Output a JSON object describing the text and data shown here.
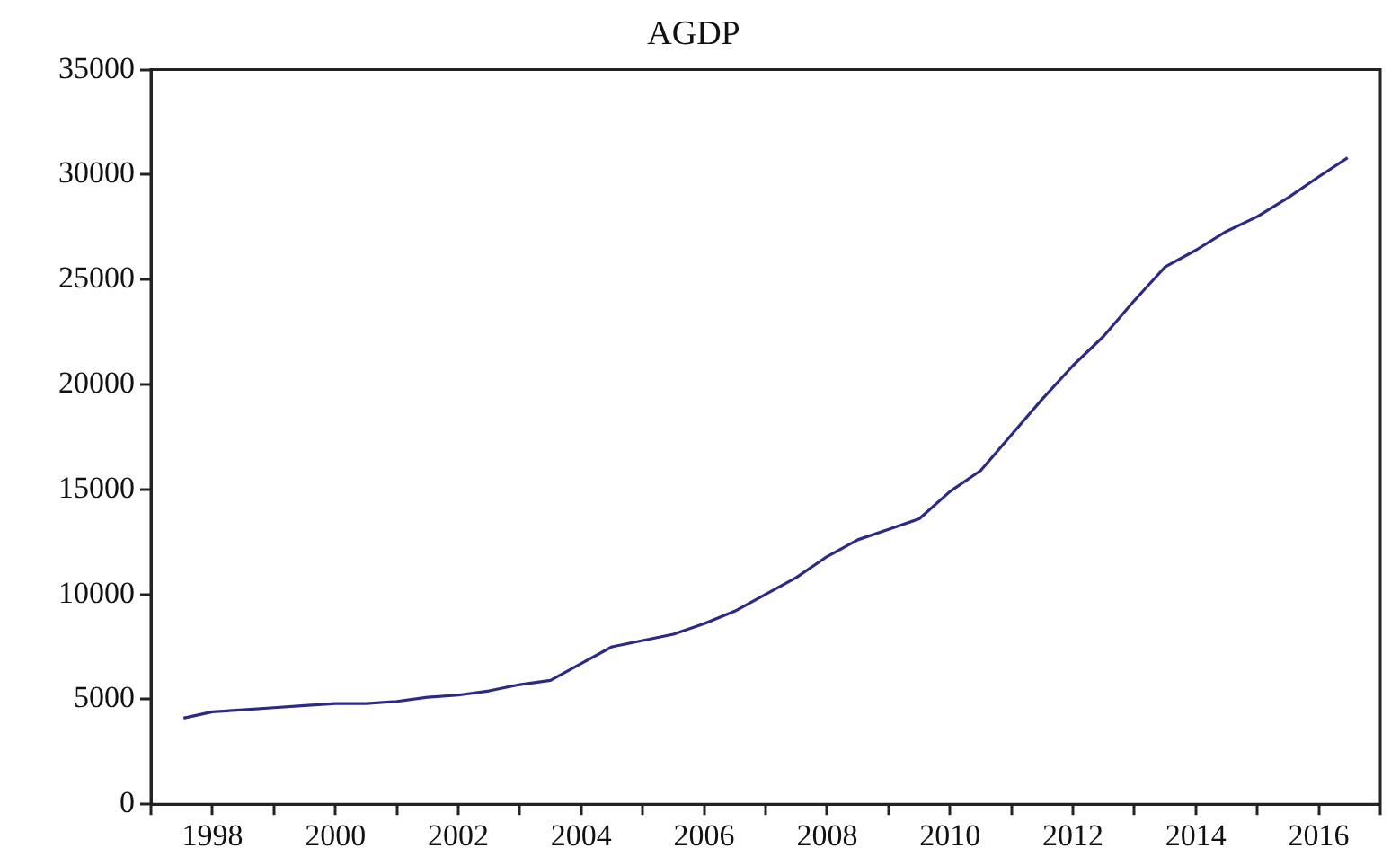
{
  "chart_data": {
    "type": "line",
    "title": "AGDP",
    "x": [
      1997.53,
      1998.0,
      1998.5,
      1999.0,
      1999.5,
      2000.0,
      2000.5,
      2001.0,
      2001.5,
      2002.0,
      2002.5,
      2003.0,
      2003.5,
      2004.0,
      2004.5,
      2005.0,
      2005.5,
      2006.0,
      2006.5,
      2007.0,
      2007.5,
      2008.0,
      2008.5,
      2009.0,
      2009.5,
      2010.0,
      2010.5,
      2011.0,
      2011.5,
      2012.0,
      2012.5,
      2013.0,
      2013.5,
      2014.0,
      2014.5,
      2015.0,
      2015.5,
      2016.0,
      2016.47
    ],
    "series": [
      {
        "color": "#2b2a85",
        "values": [
          4100,
          4400,
          4500,
          4600,
          4700,
          4800,
          4800,
          4900,
          5100,
          5200,
          5400,
          5700,
          5900,
          6700,
          7500,
          7800,
          8100,
          8600,
          9200,
          10000,
          10800,
          11800,
          12600,
          13100,
          13600,
          14900,
          15900,
          17600,
          19300,
          20900,
          22300,
          24000,
          25600,
          26400,
          27300,
          28000,
          28900,
          29900,
          30800
        ]
      }
    ],
    "xlim": [
      1997,
      2017
    ],
    "xticks": [
      {
        "value": 1997,
        "label": null
      },
      1998,
      {
        "value": 1999,
        "label": null
      },
      2000,
      {
        "value": 2001,
        "label": null
      },
      2002,
      {
        "value": 2003,
        "label": null
      },
      2004,
      {
        "value": 2005,
        "label": null
      },
      2006,
      {
        "value": 2007,
        "label": null
      },
      2008,
      {
        "value": 2009,
        "label": null
      },
      2010,
      {
        "value": 2011,
        "label": null
      },
      2012,
      {
        "value": 2013,
        "label": null
      },
      2014,
      {
        "value": 2015,
        "label": null
      },
      2016,
      {
        "value": 2017,
        "label": null
      }
    ],
    "ylim": [
      0,
      35000
    ],
    "yticks": [
      0,
      5000,
      10000,
      15000,
      20000,
      25000,
      30000,
      35000
    ],
    "grid": false,
    "legend": false,
    "marker": "none",
    "line_style": "solid"
  }
}
